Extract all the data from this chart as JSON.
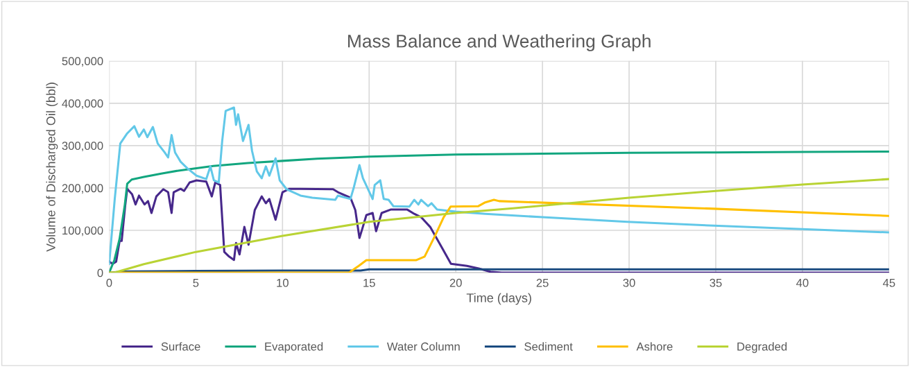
{
  "chart_data": {
    "type": "line",
    "title": "Mass Balance and Weathering Graph",
    "xlabel": "Time (days)",
    "ylabel": "Volume of Discharged Oil (bbl)",
    "xlim": [
      0,
      45
    ],
    "xticks": [
      0,
      5,
      10,
      15,
      20,
      25,
      30,
      35,
      40,
      45
    ],
    "ylim": [
      0,
      500000
    ],
    "yticks": [
      {
        "value": 0,
        "label": "0"
      },
      {
        "value": 100000,
        "label": "100,000"
      },
      {
        "value": 200000,
        "label": "200,000"
      },
      {
        "value": 300000,
        "label": "300,000"
      },
      {
        "value": 400000,
        "label": "400,000"
      },
      {
        "value": 500000,
        "label": "500,000"
      }
    ],
    "grid": true,
    "legend": "bottom",
    "marker": "none",
    "line_style": "solid",
    "series": [
      {
        "name": "Surface",
        "color": "#47288b",
        "x": [
          0,
          0.2,
          0.4,
          0.6,
          0.72,
          0.92,
          1.04,
          1.32,
          1.52,
          1.72,
          2.04,
          2.24,
          2.44,
          2.72,
          3.12,
          3.4,
          3.6,
          3.72,
          4.12,
          4.32,
          4.64,
          5.04,
          5.6,
          5.92,
          6.12,
          6.4,
          6.64,
          6.92,
          7.2,
          7.32,
          7.52,
          7.8,
          8.04,
          8.4,
          8.8,
          9.04,
          9.24,
          9.6,
          10.0,
          10.4,
          11.04,
          12.92,
          13.2,
          13.92,
          14.2,
          14.44,
          14.6,
          14.84,
          15.2,
          15.4,
          15.72,
          16.24,
          17.2,
          17.6,
          18.0,
          18.52,
          19.2,
          19.72,
          20.64,
          21.32,
          22.0,
          22.64,
          45
        ],
        "values": [
          26000,
          21000,
          26000,
          75000,
          75000,
          157000,
          198000,
          185000,
          161000,
          182000,
          161000,
          169000,
          141000,
          180000,
          197000,
          190000,
          141000,
          190000,
          198000,
          193000,
          213000,
          218000,
          215000,
          180000,
          213000,
          207000,
          49000,
          38000,
          30000,
          70000,
          43000,
          108000,
          66000,
          148000,
          180000,
          164000,
          174000,
          125000,
          190000,
          198000,
          198000,
          197000,
          190000,
          177000,
          148000,
          82000,
          103000,
          136000,
          141000,
          98000,
          141000,
          149000,
          149000,
          139000,
          131000,
          108000,
          59000,
          21000,
          16000,
          10000,
          2000,
          0,
          0
        ]
      },
      {
        "name": "Evaporated",
        "color": "#12a67f",
        "x": [
          0,
          0.3,
          0.6,
          0.9,
          1.04,
          1.3,
          2,
          3,
          4,
          6,
          8,
          10,
          12,
          15,
          20,
          25,
          30,
          35,
          40,
          45
        ],
        "values": [
          0,
          30000,
          80000,
          160000,
          210000,
          220000,
          226000,
          234000,
          241000,
          252000,
          259000,
          264000,
          269000,
          274000,
          279000,
          281000,
          283000,
          284000,
          285000,
          286000
        ]
      },
      {
        "name": "Water Column",
        "color": "#62c8e8",
        "x": [
          0,
          0.32,
          0.64,
          1.04,
          1.45,
          1.72,
          2.0,
          2.2,
          2.52,
          2.8,
          3.2,
          3.4,
          3.6,
          3.8,
          4.12,
          4.52,
          5.04,
          5.6,
          5.84,
          6.04,
          6.32,
          6.52,
          6.72,
          7.2,
          7.32,
          7.44,
          7.72,
          8.04,
          8.24,
          8.52,
          8.8,
          9.04,
          9.24,
          9.6,
          9.84,
          10.24,
          11.04,
          11.72,
          13.04,
          13.2,
          13.92,
          14.12,
          14.44,
          14.64,
          15.2,
          15.32,
          15.64,
          15.84,
          16.12,
          16.4,
          17.32,
          17.6,
          17.84,
          18.0,
          18.4,
          18.6,
          18.92,
          20.0,
          21.7,
          25,
          29.9,
          34.9,
          40,
          45
        ],
        "values": [
          21000,
          174000,
          305000,
          329000,
          346000,
          321000,
          338000,
          320000,
          344000,
          305000,
          284000,
          272000,
          325000,
          284000,
          262000,
          246000,
          229000,
          221000,
          251000,
          218000,
          213000,
          311000,
          382000,
          390000,
          349000,
          374000,
          311000,
          349000,
          288000,
          239000,
          223000,
          251000,
          229000,
          270000,
          218000,
          197000,
          182000,
          177000,
          172000,
          182000,
          174000,
          202000,
          254000,
          223000,
          174000,
          207000,
          218000,
          174000,
          172000,
          157000,
          156000,
          172000,
          161000,
          172000,
          157000,
          164000,
          149000,
          144000,
          139000,
          131000,
          120000,
          111000,
          103000,
          95000
        ]
      },
      {
        "name": "Sediment",
        "color": "#1a4b80",
        "x": [
          0,
          1,
          5,
          10,
          14.5,
          15,
          45
        ],
        "values": [
          0,
          3000,
          4000,
          5000,
          5000,
          8000,
          8000
        ]
      },
      {
        "name": "Ashore",
        "color": "#ffc000",
        "x": [
          0,
          13.84,
          14.4,
          14.84,
          17.7,
          18.2,
          18.8,
          19.3,
          19.7,
          21.3,
          21.7,
          22.2,
          22.5,
          34.9,
          45
        ],
        "values": [
          0,
          0,
          16000,
          29500,
          29500,
          38000,
          87000,
          131000,
          156000,
          157000,
          166000,
          172000,
          169000,
          151000,
          134000
        ]
      },
      {
        "name": "Degraded",
        "color": "#b9d334",
        "x": [
          0,
          0.3,
          2,
          5,
          10,
          15,
          20,
          23.3,
          30,
          35,
          40,
          45
        ],
        "values": [
          0,
          0,
          20000,
          49000,
          87000,
          120000,
          141000,
          152000,
          177000,
          193000,
          208000,
          221000
        ]
      }
    ]
  }
}
